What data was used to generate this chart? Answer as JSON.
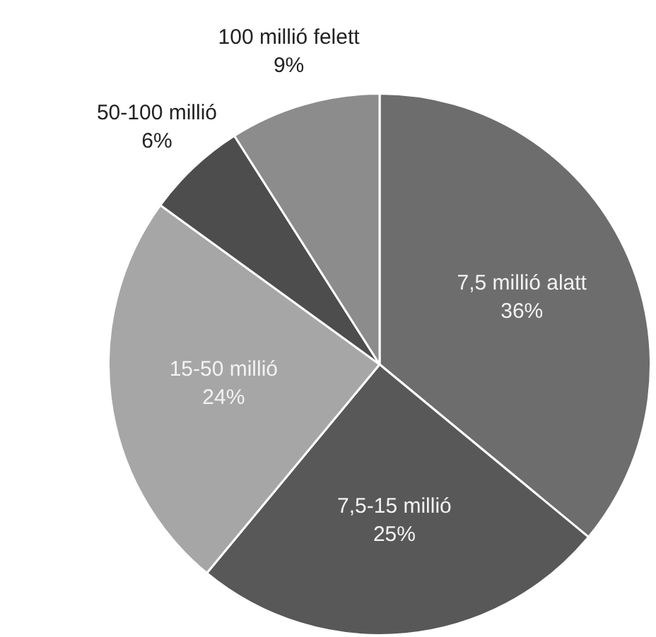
{
  "chart_data": {
    "type": "pie",
    "categories": [
      "7,5 millió alatt",
      "7,5-15 millió",
      "15-50 millió",
      "50-100 millió",
      "100 millió felett"
    ],
    "values": [
      36,
      25,
      24,
      6,
      9
    ],
    "value_labels": [
      "36%",
      "25%",
      "24%",
      "6%",
      "9%"
    ],
    "colors": [
      "#6d6d6d",
      "#585858",
      "#a6a6a6",
      "#4d4d4d",
      "#8c8c8c"
    ],
    "legend": false
  }
}
